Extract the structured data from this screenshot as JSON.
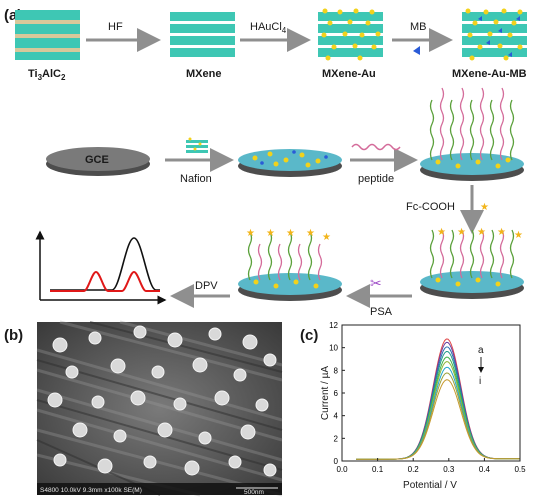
{
  "panels": {
    "a": "(a)",
    "b": "(b)",
    "c": "(c)"
  },
  "synthesis": {
    "materials": [
      {
        "label": "Ti",
        "sub": "3",
        "label2": "AlC",
        "sub2": "2"
      },
      {
        "label": "MXene"
      },
      {
        "label": "MXene-Au"
      },
      {
        "label": "MXene-Au-MB"
      }
    ],
    "steps": [
      {
        "label": "HF"
      },
      {
        "label": "HAuCl",
        "sub": "4"
      },
      {
        "label": "MB"
      }
    ]
  },
  "electrode": {
    "gce_label": "GCE",
    "nafion_label": "Nafion",
    "peptide_label": "peptide",
    "fc_label": "Fc-COOH",
    "psa_label": "PSA",
    "dpv_label": "DPV"
  },
  "sem": {
    "info": "S4800 10.0kV 9.3mm x100k SE(M)",
    "scale": "500nm"
  },
  "colors": {
    "layer_tan": "#d8c89a",
    "layer_teal": "#3ec7b4",
    "gold": "#f2d21b",
    "mb_blue": "#2a5bd7",
    "peptide_green": "#5aa03a",
    "peptide_pink": "#d46b9a",
    "arrow_gray": "#8f8f8f",
    "dpv_red": "#e01818",
    "dpv_black": "#111111"
  },
  "chart_data": {
    "type": "line",
    "title": "",
    "xlabel": "Potential / V",
    "ylabel": "Current / µA",
    "xlim": [
      0.0,
      0.5
    ],
    "ylim": [
      0,
      12
    ],
    "xticks": [
      "0.0",
      "0.1",
      "0.2",
      "0.3",
      "0.4",
      "0.5"
    ],
    "yticks": [
      "0",
      "2",
      "4",
      "6",
      "8",
      "10",
      "12"
    ],
    "annotation_top": "a",
    "annotation_bottom": "i",
    "peak_x": 0.295,
    "series": [
      {
        "peak": 10.6,
        "color": "#e0484a"
      },
      {
        "peak": 10.3,
        "color": "#6b3fa0"
      },
      {
        "peak": 9.9,
        "color": "#2c6fb0"
      },
      {
        "peak": 9.5,
        "color": "#1f9a8a"
      },
      {
        "peak": 9.0,
        "color": "#3fb24a"
      },
      {
        "peak": 8.6,
        "color": "#8fb83a"
      },
      {
        "peak": 8.1,
        "color": "#22a6c9"
      },
      {
        "peak": 7.6,
        "color": "#9aa13a"
      },
      {
        "peak": 7.0,
        "color": "#c69a2e"
      }
    ]
  }
}
